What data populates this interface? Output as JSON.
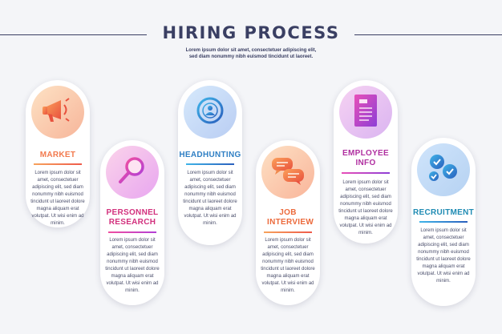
{
  "header": {
    "title": "HIRING PROCESS",
    "subtitle": "Lorem ipsum dolor sit amet, consectetuer adipiscing elit, sed diam nonummy nibh euismod tincidunt ut laoreet."
  },
  "steps": [
    {
      "label": "MARKET",
      "icon": "megaphone-icon",
      "color": "#f27a4e",
      "text": "Lorem ipsum dolor sit amet, consectetuer adipiscing elit, sed diam nonummy nibh euismod tincidunt ut laoreet dolore magna aliquam erat volutpat. Ut wisi enim ad minim."
    },
    {
      "label": "PERSONNEL RESEARCH",
      "icon": "magnifier-icon",
      "color": "#d2307d",
      "text": "Lorem ipsum dolor sit amet, consectetuer adipiscing elit, sed diam nonummy nibh euismod tincidunt ut laoreet dolore magna aliquam erat volutpat. Ut wisi enim ad minim."
    },
    {
      "label": "HEADHUNTING",
      "icon": "target-person-icon",
      "color": "#2f7fc4",
      "text": "Lorem ipsum dolor sit amet, consectetuer adipiscing elit, sed diam nonummy nibh euismod tincidunt ut laoreet dolore magna aliquam erat volutpat. Ut wisi enim ad minim."
    },
    {
      "label": "JOB INTERVIEW",
      "icon": "chat-bubbles-icon",
      "color": "#ec6a3c",
      "text": "Lorem ipsum dolor sit amet, consectetuer adipiscing elit, sed diam nonummy nibh euismod tincidunt ut laoreet dolore magna aliquam erat volutpat. Ut wisi enim ad minim."
    },
    {
      "label": "EMPLOYEE INFO",
      "icon": "document-icon",
      "color": "#b02fa0",
      "text": "Lorem ipsum dolor sit amet, consectetuer adipiscing elit, sed diam nonummy nibh euismod tincidunt ut laoreet dolore magna aliquam erat volutpat. Ut wisi enim ad minim."
    },
    {
      "label": "RECRUITMENT",
      "icon": "checkmarks-icon",
      "color": "#1f8bb3",
      "text": "Lorem ipsum dolor sit amet, consectetuer adipiscing elit, sed diam nonummy nibh euismod tincidunt ut laoreet dolore magna aliquam erat volutpat. Ut wisi enim ad minim."
    }
  ]
}
